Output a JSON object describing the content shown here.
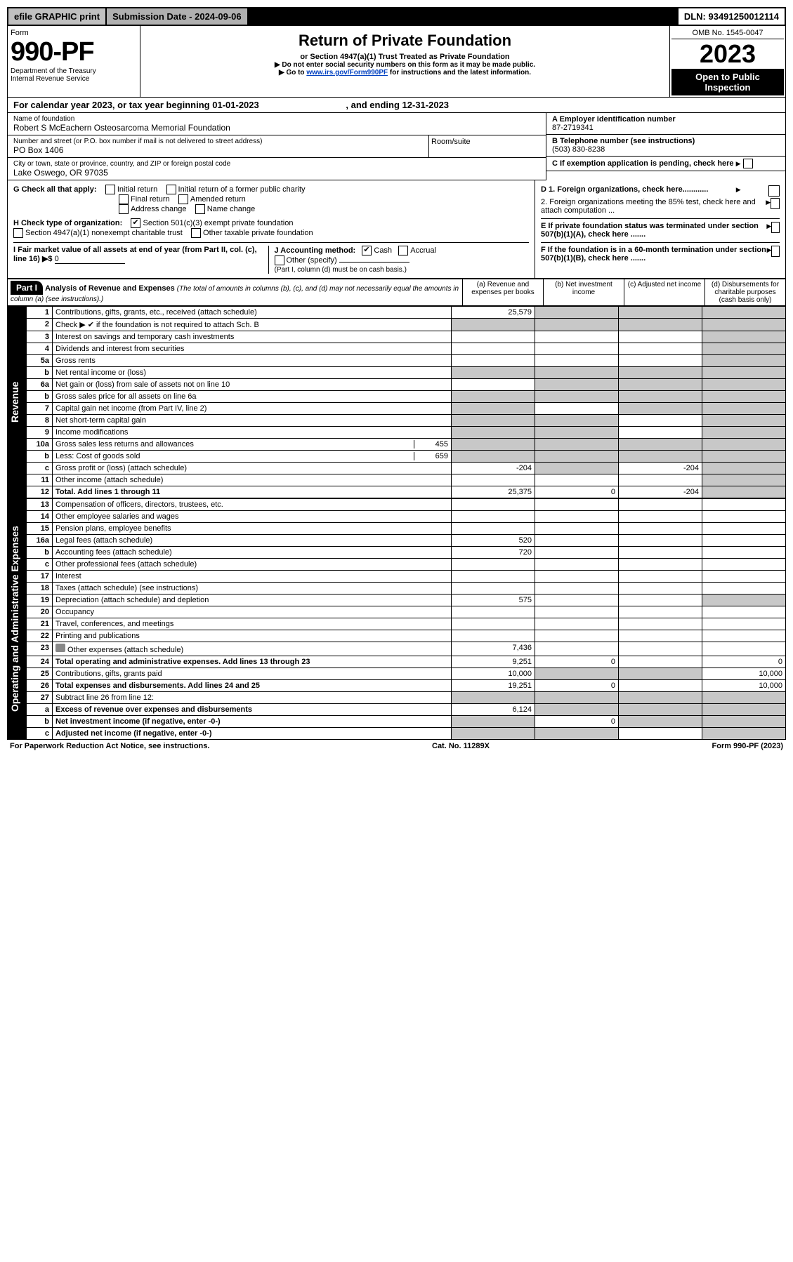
{
  "topbar": {
    "efile": "efile GRAPHIC print",
    "subdate_label": "Submission Date - ",
    "subdate": "2024-09-06",
    "dln_label": "DLN: ",
    "dln": "93491250012114"
  },
  "header": {
    "form_word": "Form",
    "form_no": "990-PF",
    "dept": "Department of the Treasury",
    "irs": "Internal Revenue Service",
    "title": "Return of Private Foundation",
    "subtitle": "or Section 4947(a)(1) Trust Treated as Private Foundation",
    "note1": "▶ Do not enter social security numbers on this form as it may be made public.",
    "note2_pre": "▶ Go to ",
    "note2_link": "www.irs.gov/Form990PF",
    "note2_post": " for instructions and the latest information.",
    "omb": "OMB No. 1545-0047",
    "year": "2023",
    "open": "Open to Public Inspection"
  },
  "calendar": {
    "text_pre": "For calendar year 2023, or tax year beginning ",
    "begin": "01-01-2023",
    "text_mid": " , and ending ",
    "end": "12-31-2023"
  },
  "foundation": {
    "name_label": "Name of foundation",
    "name": "Robert S McEachern Osteosarcoma Memorial Foundation",
    "addr_label": "Number and street (or P.O. box number if mail is not delivered to street address)",
    "addr": "PO Box 1406",
    "room_label": "Room/suite",
    "room": "",
    "city_label": "City or town, state or province, country, and ZIP or foreign postal code",
    "city": "Lake Oswego, OR  97035"
  },
  "right_info": {
    "a_label": "A Employer identification number",
    "a_value": "87-2719341",
    "b_label": "B Telephone number (see instructions)",
    "b_value": "(503) 830-8238",
    "c_label": "C If exemption application is pending, check here",
    "d1": "D 1. Foreign organizations, check here............",
    "d2": "2. Foreign organizations meeting the 85% test, check here and attach computation ...",
    "e": "E  If private foundation status was terminated under section 507(b)(1)(A), check here .......",
    "f": "F  If the foundation is in a 60-month termination under section 507(b)(1)(B), check here .......",
    "h_simple": "H Check type of organization:"
  },
  "g_section": {
    "label": "G Check all that apply:",
    "opts": [
      "Initial return",
      "Initial return of a former public charity",
      "Final return",
      "Amended return",
      "Address change",
      "Name change"
    ]
  },
  "h_section": {
    "label": "H Check type of organization:",
    "exempt": "Section 501(c)(3) exempt private foundation",
    "nonexempt": "Section 4947(a)(1) nonexempt charitable trust",
    "other": "Other taxable private foundation"
  },
  "i_section": {
    "label": "I Fair market value of all assets at end of year (from Part II, col. (c), line 16) ▶$",
    "value": "0"
  },
  "j_section": {
    "label": "J Accounting method:",
    "cash": "Cash",
    "accrual": "Accrual",
    "other": "Other (specify)",
    "note": "(Part I, column (d) must be on cash basis.)"
  },
  "part1": {
    "label": "Part I",
    "title": "Analysis of Revenue and Expenses",
    "subtitle": "(The total of amounts in columns (b), (c), and (d) may not necessarily equal the amounts in column (a) (see instructions).)",
    "col_a": "(a) Revenue and expenses per books",
    "col_b": "(b) Net investment income",
    "col_c": "(c) Adjusted net income",
    "col_d": "(d) Disbursements for charitable purposes (cash basis only)"
  },
  "side": {
    "revenue": "Revenue",
    "expenses": "Operating and Administrative Expenses"
  },
  "rows": [
    {
      "n": "1",
      "label": "Contributions, gifts, grants, etc., received (attach schedule)",
      "a": "25,579",
      "b": "",
      "c": "",
      "d": "",
      "shade": [
        "b",
        "c",
        "d"
      ]
    },
    {
      "n": "2",
      "label": "Check ▶ ✔ if the foundation is not required to attach Sch. B",
      "a": "",
      "b": "",
      "c": "",
      "d": "",
      "shade": [
        "a",
        "b",
        "c",
        "d"
      ]
    },
    {
      "n": "3",
      "label": "Interest on savings and temporary cash investments",
      "a": "",
      "b": "",
      "c": "",
      "d": "",
      "shade": [
        "d"
      ]
    },
    {
      "n": "4",
      "label": "Dividends and interest from securities",
      "a": "",
      "b": "",
      "c": "",
      "d": "",
      "shade": [
        "d"
      ]
    },
    {
      "n": "5a",
      "label": "Gross rents",
      "a": "",
      "b": "",
      "c": "",
      "d": "",
      "shade": [
        "d"
      ]
    },
    {
      "n": "b",
      "label": "Net rental income or (loss)",
      "a": "",
      "b": "",
      "c": "",
      "d": "",
      "shade": [
        "a",
        "b",
        "c",
        "d"
      ],
      "inline": true
    },
    {
      "n": "6a",
      "label": "Net gain or (loss) from sale of assets not on line 10",
      "a": "",
      "b": "",
      "c": "",
      "d": "",
      "shade": [
        "b",
        "c",
        "d"
      ]
    },
    {
      "n": "b",
      "label": "Gross sales price for all assets on line 6a",
      "a": "",
      "b": "",
      "c": "",
      "d": "",
      "shade": [
        "a",
        "b",
        "c",
        "d"
      ],
      "inline": true
    },
    {
      "n": "7",
      "label": "Capital gain net income (from Part IV, line 2)",
      "a": "",
      "b": "",
      "c": "",
      "d": "",
      "shade": [
        "a",
        "c",
        "d"
      ]
    },
    {
      "n": "8",
      "label": "Net short-term capital gain",
      "a": "",
      "b": "",
      "c": "",
      "d": "",
      "shade": [
        "a",
        "b",
        "d"
      ]
    },
    {
      "n": "9",
      "label": "Income modifications",
      "a": "",
      "b": "",
      "c": "",
      "d": "",
      "shade": [
        "a",
        "b",
        "d"
      ]
    },
    {
      "n": "10a",
      "label": "Gross sales less returns and allowances",
      "a": "",
      "b": "",
      "c": "",
      "d": "",
      "inline_val": "455",
      "shade": [
        "a",
        "b",
        "c",
        "d"
      ]
    },
    {
      "n": "b",
      "label": "Less: Cost of goods sold",
      "a": "",
      "b": "",
      "c": "",
      "d": "",
      "inline_val": "659",
      "shade": [
        "a",
        "b",
        "c",
        "d"
      ]
    },
    {
      "n": "c",
      "label": "Gross profit or (loss) (attach schedule)",
      "a": "-204",
      "b": "",
      "c": "-204",
      "d": "",
      "shade": [
        "b",
        "d"
      ]
    },
    {
      "n": "11",
      "label": "Other income (attach schedule)",
      "a": "",
      "b": "",
      "c": "",
      "d": "",
      "shade": [
        "d"
      ]
    },
    {
      "n": "12",
      "label": "Total. Add lines 1 through 11",
      "a": "25,375",
      "b": "0",
      "c": "-204",
      "d": "",
      "bold": true,
      "shade": [
        "d"
      ]
    }
  ],
  "exp_rows": [
    {
      "n": "13",
      "label": "Compensation of officers, directors, trustees, etc.",
      "a": "",
      "b": "",
      "c": "",
      "d": ""
    },
    {
      "n": "14",
      "label": "Other employee salaries and wages",
      "a": "",
      "b": "",
      "c": "",
      "d": ""
    },
    {
      "n": "15",
      "label": "Pension plans, employee benefits",
      "a": "",
      "b": "",
      "c": "",
      "d": ""
    },
    {
      "n": "16a",
      "label": "Legal fees (attach schedule)",
      "a": "520",
      "b": "",
      "c": "",
      "d": ""
    },
    {
      "n": "b",
      "label": "Accounting fees (attach schedule)",
      "a": "720",
      "b": "",
      "c": "",
      "d": ""
    },
    {
      "n": "c",
      "label": "Other professional fees (attach schedule)",
      "a": "",
      "b": "",
      "c": "",
      "d": ""
    },
    {
      "n": "17",
      "label": "Interest",
      "a": "",
      "b": "",
      "c": "",
      "d": ""
    },
    {
      "n": "18",
      "label": "Taxes (attach schedule) (see instructions)",
      "a": "",
      "b": "",
      "c": "",
      "d": ""
    },
    {
      "n": "19",
      "label": "Depreciation (attach schedule) and depletion",
      "a": "575",
      "b": "",
      "c": "",
      "d": "",
      "shade": [
        "d"
      ]
    },
    {
      "n": "20",
      "label": "Occupancy",
      "a": "",
      "b": "",
      "c": "",
      "d": ""
    },
    {
      "n": "21",
      "label": "Travel, conferences, and meetings",
      "a": "",
      "b": "",
      "c": "",
      "d": ""
    },
    {
      "n": "22",
      "label": "Printing and publications",
      "a": "",
      "b": "",
      "c": "",
      "d": ""
    },
    {
      "n": "23",
      "label": "Other expenses (attach schedule)",
      "a": "7,436",
      "b": "",
      "c": "",
      "d": "",
      "icon": true
    },
    {
      "n": "24",
      "label": "Total operating and administrative expenses. Add lines 13 through 23",
      "a": "9,251",
      "b": "0",
      "c": "",
      "d": "0",
      "bold": true
    },
    {
      "n": "25",
      "label": "Contributions, gifts, grants paid",
      "a": "10,000",
      "b": "",
      "c": "",
      "d": "10,000",
      "shade": [
        "b",
        "c"
      ]
    },
    {
      "n": "26",
      "label": "Total expenses and disbursements. Add lines 24 and 25",
      "a": "19,251",
      "b": "0",
      "c": "",
      "d": "10,000",
      "bold": true
    },
    {
      "n": "27",
      "label": "Subtract line 26 from line 12:",
      "a": "",
      "b": "",
      "c": "",
      "d": "",
      "shade": [
        "a",
        "b",
        "c",
        "d"
      ]
    },
    {
      "n": "a",
      "label": "Excess of revenue over expenses and disbursements",
      "a": "6,124",
      "b": "",
      "c": "",
      "d": "",
      "bold": true,
      "shade": [
        "b",
        "c",
        "d"
      ]
    },
    {
      "n": "b",
      "label": "Net investment income (if negative, enter -0-)",
      "a": "",
      "b": "0",
      "c": "",
      "d": "",
      "bold": true,
      "shade": [
        "a",
        "c",
        "d"
      ]
    },
    {
      "n": "c",
      "label": "Adjusted net income (if negative, enter -0-)",
      "a": "",
      "b": "",
      "c": "",
      "d": "",
      "bold": true,
      "shade": [
        "a",
        "b",
        "d"
      ]
    }
  ],
  "footer": {
    "left": "For Paperwork Reduction Act Notice, see instructions.",
    "mid": "Cat. No. 11289X",
    "right": "Form 990-PF (2023)"
  }
}
